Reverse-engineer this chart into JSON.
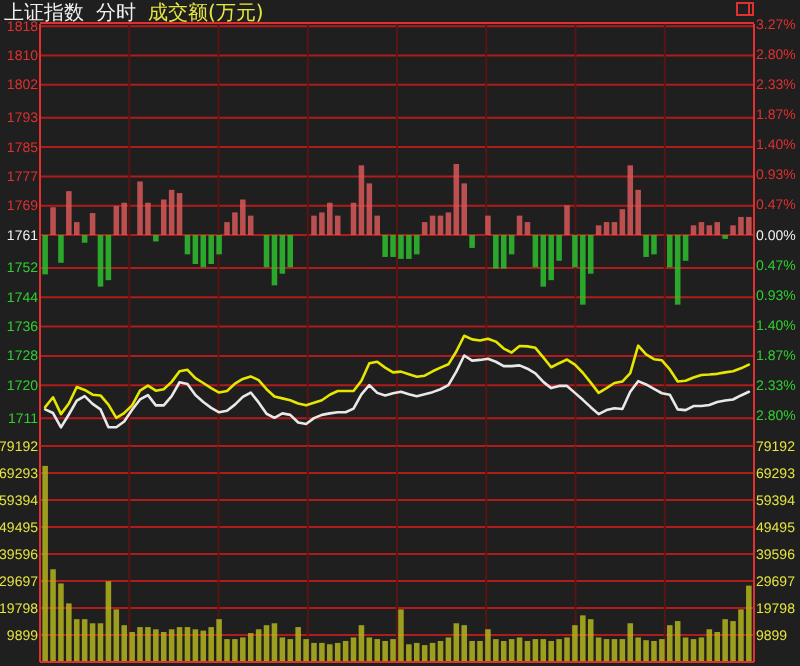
{
  "chart_data": [
    {
      "type": "line",
      "title": "上证指数",
      "subtitle": "分时",
      "categories": [
        null,
        null,
        null,
        null,
        null,
        null,
        null,
        null,
        null,
        null,
        null,
        null,
        null,
        null,
        null,
        null,
        null,
        null,
        null,
        null,
        null,
        null,
        null,
        null,
        null,
        null,
        null,
        null,
        null,
        null,
        null,
        null,
        null,
        null,
        null,
        null,
        null,
        null,
        null,
        null,
        null,
        null,
        null,
        null,
        null,
        null,
        null,
        null,
        null,
        null,
        null,
        null,
        null,
        null,
        null,
        null,
        null,
        null,
        null,
        null,
        null,
        null,
        null,
        null,
        null,
        null,
        null,
        null,
        null,
        null,
        null,
        null,
        null,
        null,
        null,
        null,
        null,
        null,
        null,
        null,
        null,
        null,
        null,
        null,
        null,
        null,
        null,
        null,
        null,
        null
      ],
      "ylim": [
        1703.4,
        1818.6
      ],
      "yticks": [
        1818,
        1810,
        1802,
        1793,
        1785,
        1777,
        1769,
        1761,
        1752,
        1744,
        1736,
        1728,
        1720,
        1711
      ],
      "y2lim": [
        -3.27,
        3.27
      ],
      "y2ticks": [
        {
          "value": 3.27,
          "label": "3.27%"
        },
        {
          "value": 2.8,
          "label": "2.80%"
        },
        {
          "value": 2.33,
          "label": "2.33%"
        },
        {
          "value": 1.87,
          "label": "1.87%"
        },
        {
          "value": 1.4,
          "label": "1.40%"
        },
        {
          "value": 0.93,
          "label": "0.93%"
        },
        {
          "value": 0.47,
          "label": "0.47%"
        },
        {
          "value": 0,
          "label": "0.00%"
        },
        {
          "value": -0.47,
          "label": "0.47%"
        },
        {
          "value": -0.93,
          "label": "0.93%"
        },
        {
          "value": -1.4,
          "label": "1.40%"
        },
        {
          "value": -1.87,
          "label": "1.87%"
        },
        {
          "value": -2.33,
          "label": "2.33%"
        },
        {
          "value": -2.8,
          "label": "2.80%"
        }
      ],
      "grid": true,
      "tick_labels": "y",
      "annotations": [
        "成交额(万元)"
      ],
      "series": [
        {
          "type": "line",
          "color": "#e8e8e8",
          "values": [
            1713.4,
            1712.4,
            1708.5,
            1712.0,
            1715.8,
            1717.0,
            1714.9,
            1713.4,
            1708.5,
            1708.5,
            1710.1,
            1713.3,
            1716.1,
            1717.3,
            1714.5,
            1714.5,
            1717.0,
            1720.8,
            1720.3,
            1717.3,
            1715.4,
            1713.8,
            1712.6,
            1713.0,
            1714.7,
            1716.8,
            1718.0,
            1715.3,
            1712.2,
            1711.1,
            1712.3,
            1711.9,
            1709.8,
            1709.4,
            1711.0,
            1711.9,
            1712.3,
            1712.6,
            1712.6,
            1713.6,
            1717.5,
            1720.0,
            1717.9,
            1717.2,
            1717.8,
            1718.2,
            1717.5,
            1717.0,
            1717.5,
            1718.1,
            1718.9,
            1720.0,
            1723.7,
            1728.1,
            1726.7,
            1726.9,
            1727.2,
            1726.4,
            1725.2,
            1725.2,
            1725.4,
            1724.5,
            1723.2,
            1720.9,
            1719.2,
            1719.8,
            1719.8,
            1717.9,
            1716.0,
            1714.0,
            1712.1,
            1713.2,
            1713.7,
            1713.5,
            1718.2,
            1721.1,
            1720.2,
            1719.0,
            1717.8,
            1717.4,
            1713.4,
            1713.2,
            1714.3,
            1714.3,
            1714.6,
            1715.4,
            1715.8,
            1716.1,
            1717.2,
            1718.2
          ]
        },
        {
          "type": "line",
          "color": "#e6e600",
          "values": [
            1714.0,
            1716.7,
            1712.1,
            1715.0,
            1719.5,
            1718.7,
            1717.4,
            1717.2,
            1714.7,
            1711.1,
            1712.4,
            1714.5,
            1718.5,
            1719.9,
            1718.5,
            1718.9,
            1720.9,
            1723.8,
            1724.2,
            1721.9,
            1720.6,
            1719.2,
            1718.0,
            1718.4,
            1720.4,
            1721.7,
            1722.4,
            1721.4,
            1718.9,
            1716.9,
            1716.4,
            1715.9,
            1715.0,
            1714.5,
            1715.2,
            1715.9,
            1717.4,
            1718.4,
            1718.4,
            1718.4,
            1721.2,
            1726.0,
            1726.4,
            1724.8,
            1723.5,
            1723.7,
            1723.0,
            1722.3,
            1722.6,
            1723.8,
            1724.8,
            1725.7,
            1729.2,
            1733.5,
            1732.5,
            1732.2,
            1732.7,
            1731.9,
            1730.0,
            1728.9,
            1730.7,
            1730.6,
            1730.2,
            1727.6,
            1724.9,
            1726.0,
            1727.0,
            1725.6,
            1723.4,
            1720.7,
            1717.9,
            1719.2,
            1720.6,
            1721.0,
            1723.3,
            1730.8,
            1728.4,
            1727.1,
            1726.8,
            1724.3,
            1721.0,
            1721.2,
            1722.1,
            1722.8,
            1722.9,
            1723.1,
            1723.5,
            1723.8,
            1724.6,
            1725.6
          ]
        },
        {
          "type": "bar",
          "axis": "y2",
          "color": "#d85858",
          "values": [
            null,
            0.43,
            null,
            0.68,
            0.2,
            null,
            0.34,
            null,
            null,
            0.45,
            0.5,
            null,
            0.83,
            0.5,
            null,
            0.55,
            0.7,
            0.65,
            null,
            null,
            null,
            null,
            null,
            0.2,
            0.35,
            0.55,
            0.3,
            null,
            null,
            null,
            null,
            null,
            null,
            null,
            0.3,
            0.35,
            0.5,
            0.3,
            null,
            0.5,
            1.08,
            0.8,
            0.3,
            null,
            null,
            null,
            null,
            null,
            0.2,
            0.3,
            0.3,
            0.35,
            1.1,
            0.8,
            null,
            null,
            0.3,
            null,
            null,
            null,
            0.3,
            0.2,
            null,
            null,
            null,
            null,
            0.46,
            null,
            null,
            null,
            0.15,
            0.2,
            0.2,
            0.4,
            1.08,
            0.7,
            null,
            null,
            null,
            null,
            null,
            null,
            0.15,
            0.2,
            0.15,
            0.2,
            null,
            0.15,
            0.28,
            0.28
          ]
        },
        {
          "type": "bar",
          "axis": "y2",
          "color": "#2ec02e",
          "values": [
            -0.61,
            null,
            -0.43,
            null,
            null,
            -0.12,
            null,
            -0.8,
            -0.7,
            null,
            null,
            null,
            null,
            null,
            -0.1,
            null,
            null,
            null,
            -0.3,
            -0.45,
            -0.5,
            -0.45,
            -0.3,
            null,
            null,
            null,
            null,
            null,
            -0.5,
            -0.78,
            -0.6,
            -0.5,
            null,
            null,
            null,
            null,
            null,
            null,
            null,
            null,
            null,
            null,
            null,
            -0.34,
            -0.34,
            -0.37,
            -0.37,
            -0.3,
            null,
            null,
            null,
            null,
            null,
            null,
            -0.2,
            null,
            null,
            -0.52,
            -0.52,
            -0.3,
            null,
            null,
            -0.5,
            -0.8,
            -0.7,
            -0.4,
            null,
            -0.5,
            -1.08,
            -0.6,
            null,
            null,
            null,
            null,
            null,
            null,
            -0.34,
            -0.3,
            null,
            -0.5,
            -1.08,
            -0.4,
            null,
            null,
            null,
            null,
            -0.06,
            null,
            null,
            null
          ]
        }
      ]
    },
    {
      "type": "bar",
      "categories": [
        null,
        null,
        null,
        null,
        null,
        null,
        null,
        null,
        null,
        null,
        null,
        null,
        null,
        null,
        null,
        null,
        null,
        null,
        null,
        null,
        null,
        null,
        null,
        null,
        null,
        null,
        null,
        null,
        null,
        null,
        null,
        null,
        null,
        null,
        null,
        null,
        null,
        null,
        null,
        null,
        null,
        null,
        null,
        null,
        null,
        null,
        null,
        null,
        null,
        null,
        null,
        null,
        null,
        null,
        null,
        null,
        null,
        null,
        null,
        null,
        null,
        null,
        null,
        null,
        null,
        null,
        null,
        null,
        null,
        null,
        null,
        null,
        null,
        null,
        null,
        null,
        null,
        null,
        null,
        null,
        null,
        null,
        null,
        null,
        null,
        null,
        null,
        null,
        null,
        null
      ],
      "ylim": [
        0,
        79192
      ],
      "yticks": [
        9899,
        19798,
        29697,
        39596,
        49495,
        59394,
        69293,
        79192
      ],
      "y2lim": [
        0,
        79192
      ],
      "y2ticks": [
        9899,
        19798,
        29697,
        39596,
        49495,
        59394,
        69293,
        79192
      ],
      "grid": true,
      "tick_labels": "y",
      "color": "#b4b41e",
      "values": [
        71900,
        34000,
        28800,
        21500,
        15700,
        15700,
        14200,
        14200,
        29600,
        19300,
        13500,
        11000,
        12800,
        12800,
        12000,
        11000,
        12000,
        12800,
        12800,
        12000,
        11500,
        12800,
        15700,
        8400,
        8400,
        9000,
        10600,
        12000,
        13500,
        14200,
        9000,
        8400,
        12800,
        8400,
        7000,
        7000,
        6500,
        7000,
        7700,
        9000,
        13500,
        9000,
        8400,
        7700,
        8400,
        19300,
        6500,
        7000,
        6200,
        7000,
        7700,
        9000,
        14200,
        13500,
        7700,
        7700,
        12000,
        8400,
        7700,
        8400,
        9000,
        7700,
        8400,
        8400,
        7700,
        8400,
        9000,
        13500,
        17100,
        15700,
        9000,
        8400,
        8400,
        8400,
        14200,
        9000,
        8000,
        7700,
        8400,
        13500,
        15000,
        9000,
        8400,
        9000,
        12000,
        11000,
        15700,
        15000,
        19300,
        28000
      ]
    }
  ]
}
